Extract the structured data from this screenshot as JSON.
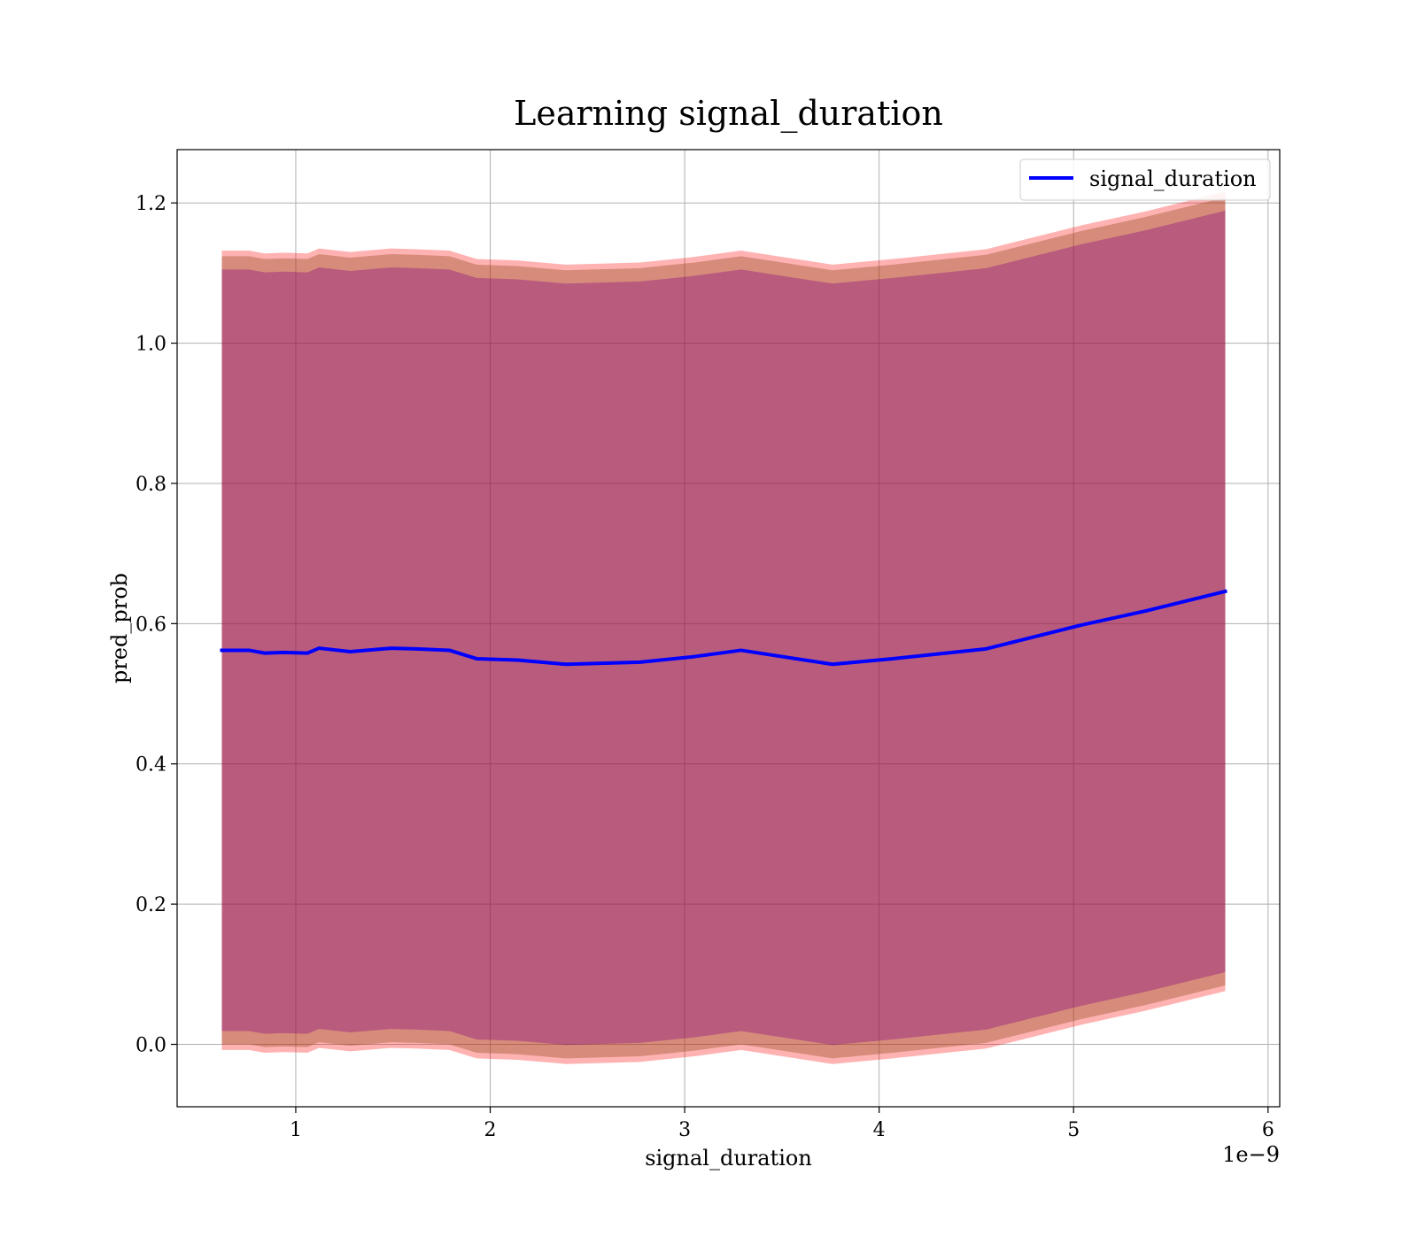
{
  "chart_data": {
    "type": "line",
    "title": "Learning signal_duration",
    "xlabel": "signal_duration",
    "ylabel": "pred_prob",
    "x_offset_label": "1e−9",
    "xlim": [
      0.39,
      6.06
    ],
    "ylim": [
      -0.089,
      1.276
    ],
    "x_ticks": [
      1,
      2,
      3,
      4,
      5,
      6
    ],
    "x_tick_labels": [
      "1",
      "2",
      "3",
      "4",
      "5",
      "6"
    ],
    "y_ticks": [
      0.0,
      0.2,
      0.4,
      0.6,
      0.8,
      1.0,
      1.2
    ],
    "y_tick_labels": [
      "0.0",
      "0.2",
      "0.4",
      "0.6",
      "0.8",
      "1.0",
      "1.2"
    ],
    "grid": true,
    "legend_position": "top-right",
    "x": [
      0.62,
      0.76,
      0.84,
      0.94,
      1.06,
      1.12,
      1.28,
      1.49,
      1.62,
      1.79,
      1.93,
      2.14,
      2.39,
      2.77,
      3.05,
      3.29,
      3.76,
      4.07,
      4.55,
      5.04,
      5.37,
      5.78
    ],
    "series": [
      {
        "name": "signal_duration",
        "color": "#0000ff",
        "values": [
          0.562,
          0.562,
          0.558,
          0.559,
          0.558,
          0.565,
          0.56,
          0.565,
          0.564,
          0.562,
          0.55,
          0.548,
          0.542,
          0.545,
          0.553,
          0.562,
          0.542,
          0.55,
          0.564,
          0.598,
          0.618,
          0.646
        ]
      }
    ],
    "bands": [
      {
        "color": "#ff0000",
        "opacity": 0.3,
        "offset": 0.57
      },
      {
        "color": "#8b4513",
        "opacity": 0.35,
        "offset": 0.562
      },
      {
        "color": "#800080",
        "opacity": 0.35,
        "offset": 0.543
      }
    ]
  }
}
